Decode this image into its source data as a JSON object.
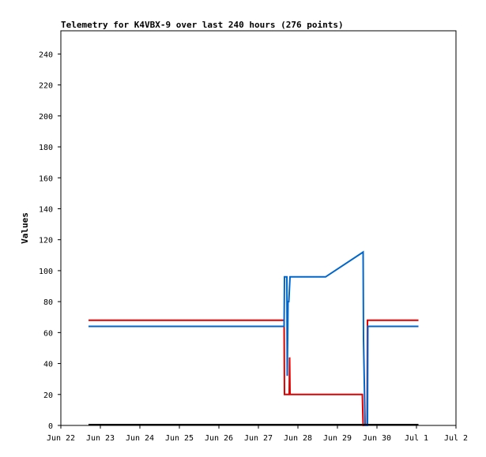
{
  "chart_data": {
    "type": "line",
    "title": "Telemetry for K4VBX-9 over last 240 hours (276 points)",
    "ylabel": "Values",
    "xlabel": "",
    "ylim": [
      0,
      255
    ],
    "yticks": [
      0,
      20,
      40,
      60,
      80,
      100,
      120,
      140,
      160,
      180,
      200,
      220,
      240
    ],
    "xlim": [
      "Jun 22",
      "Jul 2"
    ],
    "xticks": [
      "Jun 22",
      "Jun 23",
      "Jun 24",
      "Jun 25",
      "Jun 26",
      "Jun 27",
      "Jun 28",
      "Jun 29",
      "Jun 30",
      "Jul 1",
      "Jul 2"
    ],
    "grid": false,
    "colors": {
      "red": "#e00000",
      "blue": "#0066cc",
      "black": "#000000"
    },
    "series": [
      {
        "color": "#e00000",
        "points": [
          [
            22.7,
            68
          ],
          [
            27.65,
            68
          ],
          [
            27.66,
            20
          ],
          [
            27.78,
            20
          ],
          [
            27.79,
            44
          ],
          [
            27.8,
            20
          ],
          [
            29.63,
            20
          ],
          [
            29.64,
            10
          ],
          [
            29.65,
            0
          ],
          [
            29.75,
            0
          ],
          [
            29.76,
            68
          ],
          [
            31.05,
            68
          ]
        ]
      },
      {
        "color": "#0066cc",
        "points": [
          [
            22.7,
            64
          ],
          [
            27.65,
            64
          ],
          [
            27.66,
            96
          ],
          [
            27.72,
            96
          ],
          [
            27.73,
            32
          ],
          [
            27.75,
            80
          ],
          [
            27.77,
            80
          ],
          [
            27.8,
            96
          ],
          [
            28.7,
            96
          ],
          [
            29.65,
            112
          ],
          [
            29.66,
            56
          ],
          [
            29.7,
            0
          ],
          [
            29.76,
            0
          ],
          [
            29.77,
            64
          ],
          [
            31.05,
            64
          ]
        ]
      },
      {
        "color": "#000000",
        "points": [
          [
            22.7,
            0.5
          ],
          [
            31.05,
            0.5
          ]
        ]
      }
    ]
  }
}
